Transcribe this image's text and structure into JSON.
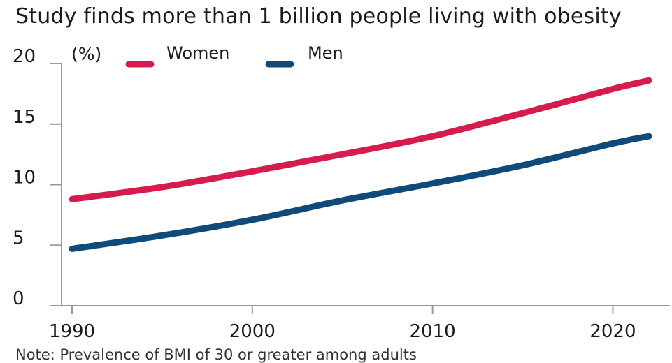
{
  "colors": {
    "women": "#d81b4e",
    "men": "#0f4a78",
    "axis": "#9a9a9a"
  },
  "chart_data": {
    "type": "line",
    "title": "Study finds more than 1 billion people living with obesity",
    "unit": "(%)",
    "x": [
      1990,
      1995,
      2000,
      2005,
      2010,
      2015,
      2020,
      2022
    ],
    "xticks": [
      "1990",
      "2000",
      "2010",
      "2020"
    ],
    "yticks": [
      "0",
      "5",
      "10",
      "15",
      "20"
    ],
    "xlim": [
      1990,
      2022
    ],
    "ylim": [
      0,
      20
    ],
    "grid": false,
    "legend_position": "top-left",
    "series": [
      {
        "name": "Women",
        "color": "#d81b4e",
        "values": [
          8.8,
          9.8,
          11.1,
          12.5,
          14.0,
          15.9,
          17.9,
          18.6
        ]
      },
      {
        "name": "Men",
        "color": "#0f4a78",
        "values": [
          4.7,
          5.8,
          7.1,
          8.7,
          10.1,
          11.6,
          13.4,
          14.0
        ]
      }
    ]
  },
  "note": "Note: Prevalence of BMI of 30 or greater among adults"
}
